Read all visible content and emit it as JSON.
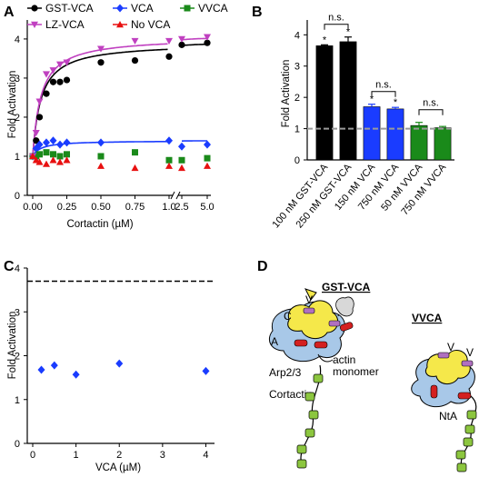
{
  "panels": {
    "A": {
      "letter": "A",
      "ylabel": "Fold Activation",
      "xlabel": "Cortactin (µM)",
      "yticks": [
        "0",
        "1",
        "2",
        "3",
        "4"
      ],
      "xticks_left": [
        "0.00",
        "0.25",
        "0.50",
        "0.75",
        "1.0"
      ],
      "xticks_right": [
        "2.5",
        "5.0"
      ],
      "legend": [
        "GST-VCA",
        "VCA",
        "VVCA",
        "LZ-VCA",
        "No VCA"
      ]
    },
    "B": {
      "letter": "B",
      "ylabel": "Fold Activation",
      "yticks": [
        "0",
        "1",
        "2",
        "3",
        "4"
      ],
      "ns_label": "n.s.",
      "star_label": "*"
    },
    "C": {
      "letter": "C",
      "ylabel": "Fold Activation",
      "xlabel": "VCA (µM)",
      "yticks": [
        "0",
        "1",
        "2",
        "3",
        "4"
      ],
      "xticks": [
        "0",
        "1",
        "2",
        "3",
        "4"
      ]
    },
    "D": {
      "letter": "D",
      "title_left": "GST-VCA",
      "title_right": "VVCA",
      "labels_left": {
        "v": "V",
        "c": "C",
        "a": "A",
        "arp": "Arp2/3",
        "actin1": "actin",
        "actin2": "monomer",
        "cortactin": "Cortactin"
      },
      "labels_right": {
        "v1": "V",
        "v2": "V",
        "nta": "NtA"
      }
    }
  },
  "colors": {
    "gst_vca": "#000000",
    "vca": "#1a3cff",
    "vvca": "#1a8a1a",
    "lz_vca": "#c040c0",
    "no_vca": "#e81010",
    "arp": "#a8c8e8",
    "yellow": "#f5e84a",
    "green_box": "#8cc63f",
    "red_domain": "#d42020",
    "purple_domain": "#b070c0",
    "dashed_gray": "#9a9a9a"
  },
  "chart_data": [
    {
      "panel": "A",
      "type": "scatter",
      "xlabel": "Cortactin (µM)",
      "ylabel": "Fold Activation",
      "ylim": [
        0,
        4.3
      ],
      "xbreak": [
        1.0,
        2.5
      ],
      "legend_position": "top",
      "series": [
        {
          "name": "GST-VCA",
          "color": "#000000",
          "marker": "circle",
          "x": [
            0,
            0.025,
            0.05,
            0.1,
            0.15,
            0.2,
            0.25,
            0.5,
            0.75,
            1.0,
            2.5,
            5.0
          ],
          "y": [
            1.0,
            1.4,
            2.0,
            2.6,
            2.9,
            2.9,
            2.95,
            3.4,
            3.45,
            3.55,
            3.85,
            3.9
          ],
          "fit": "hyperbolic"
        },
        {
          "name": "VCA",
          "color": "#1a3cff",
          "marker": "diamond",
          "x": [
            0,
            0.025,
            0.05,
            0.1,
            0.15,
            0.2,
            0.25,
            0.5,
            1.0,
            2.5,
            5.0
          ],
          "y": [
            1.0,
            1.2,
            1.3,
            1.35,
            1.4,
            1.3,
            1.35,
            1.35,
            1.4,
            1.25,
            1.3
          ],
          "fit": "hyperbolic"
        },
        {
          "name": "VVCA",
          "color": "#1a8a1a",
          "marker": "square",
          "x": [
            0,
            0.025,
            0.05,
            0.1,
            0.15,
            0.2,
            0.25,
            0.5,
            0.75,
            1.0,
            2.5,
            5.0
          ],
          "y": [
            1.0,
            1.0,
            1.05,
            1.1,
            1.05,
            1.0,
            1.05,
            1.0,
            1.1,
            0.9,
            0.9,
            0.95
          ]
        },
        {
          "name": "LZ-VCA",
          "color": "#c040c0",
          "marker": "triangle-down",
          "x": [
            0,
            0.025,
            0.05,
            0.1,
            0.15,
            0.2,
            0.25,
            0.5,
            0.75,
            1.0,
            2.5,
            5.0
          ],
          "y": [
            1.0,
            1.6,
            2.4,
            3.1,
            3.2,
            3.35,
            3.4,
            3.75,
            3.95,
            3.95,
            4.0,
            4.05
          ],
          "fit": "hyperbolic"
        },
        {
          "name": "No VCA",
          "color": "#e81010",
          "marker": "triangle-up",
          "x": [
            0,
            0.025,
            0.05,
            0.1,
            0.15,
            0.2,
            0.25,
            0.5,
            0.75,
            1.0,
            2.5,
            5.0
          ],
          "y": [
            1.0,
            0.9,
            0.85,
            0.8,
            0.9,
            0.85,
            0.9,
            0.75,
            0.7,
            0.75,
            0.7,
            0.75
          ]
        }
      ]
    },
    {
      "panel": "B",
      "type": "bar",
      "ylabel": "Fold Activation",
      "ylim": [
        0,
        4.3
      ],
      "categories": [
        "100 nM GST-VCA",
        "250 nM GST-VCA",
        "150 nM VCA",
        "750 nM VCA",
        "50 nM VVCA",
        "750 nM VVCA"
      ],
      "values": [
        3.65,
        3.78,
        1.7,
        1.63,
        1.1,
        1.03
      ],
      "errors": [
        0.03,
        0.15,
        0.08,
        0.05,
        0.1,
        0.04
      ],
      "colors": [
        "#000000",
        "#000000",
        "#1a3cff",
        "#1a3cff",
        "#1a8a1a",
        "#1a8a1a"
      ],
      "significance": [
        true,
        true,
        true,
        true,
        false,
        false
      ],
      "comparisons": [
        [
          0,
          1
        ],
        [
          2,
          3
        ],
        [
          4,
          5
        ]
      ],
      "reference_line": 1.0
    },
    {
      "panel": "C",
      "type": "scatter",
      "xlabel": "VCA (µM)",
      "ylabel": "Fold Activation",
      "xlim": [
        0,
        4.2
      ],
      "ylim": [
        0,
        4
      ],
      "series": [
        {
          "name": "",
          "color": "#1a3cff",
          "marker": "diamond",
          "x": [
            0.2,
            0.5,
            1.0,
            2.0,
            4.0
          ],
          "y": [
            1.68,
            1.78,
            1.57,
            1.82,
            1.65
          ]
        }
      ],
      "reference_line": 3.7
    }
  ]
}
